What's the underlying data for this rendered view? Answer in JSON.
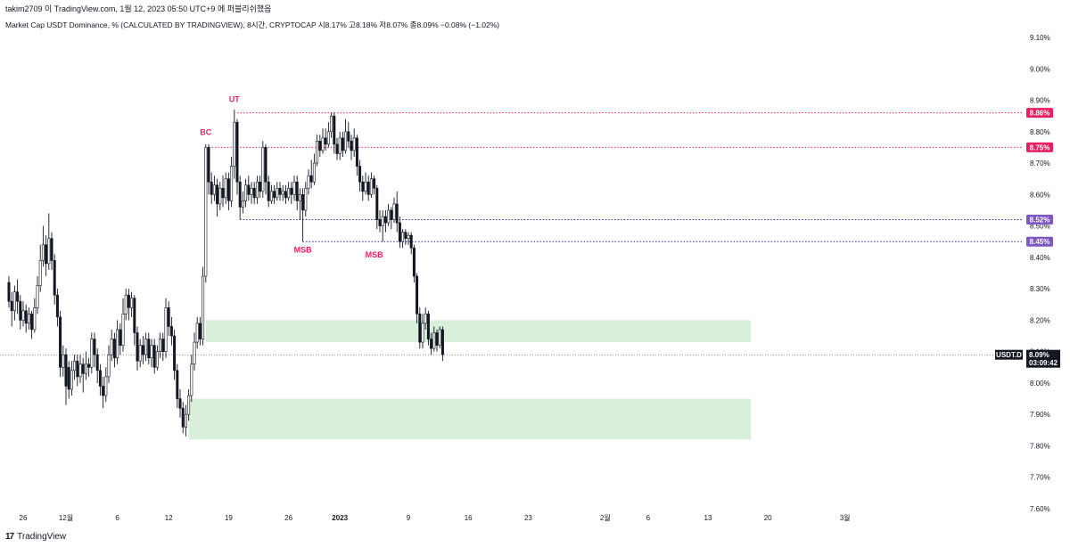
{
  "header": {
    "credit": "takim2709 이 TradingView.com, 1월 12, 2023 05:50 UTC+9 에 퍼블리쉬했음",
    "symbol_line": "Market Cap USDT Dominance, % (CALCULATED BY TRADINGVIEW), 8시간, CRYPTOCAP  시8.17%  고8.18%  저8.07%  종8.09%  −0.08% (−1.02%)"
  },
  "footer": {
    "logo_text": "TradingView",
    "logo_mark": "17"
  },
  "colors": {
    "red_line": "#e91e63",
    "blue_line": "#2a2e8c",
    "red_tag": "#e91e63",
    "purple_tag": "#7e57c2",
    "zone": "#d8f0da",
    "candle": "#131722"
  },
  "price_tag": {
    "symbol": "USDT.D",
    "value": "8.09%",
    "countdown": "03:09:42"
  },
  "chart_data": {
    "type": "candlestick",
    "title": "Market Cap USDT Dominance, % (CALCULATED BY TRADINGVIEW)",
    "timeframe": "8시간",
    "exchange": "CRYPTOCAP",
    "last_bar": {
      "open": 8.17,
      "high": 8.18,
      "low": 8.07,
      "close": 8.09,
      "change": "−0.08%",
      "change_pct": "−1.02%"
    },
    "ylim": [
      7.58,
      9.15
    ],
    "y_ticks": [
      "9.10%",
      "9.00%",
      "8.90%",
      "8.80%",
      "8.70%",
      "8.60%",
      "8.50%",
      "8.40%",
      "8.30%",
      "8.20%",
      "8.10%",
      "8.00%",
      "7.90%",
      "7.80%",
      "7.70%",
      "7.60%"
    ],
    "y_tick_values": [
      9.1,
      9.0,
      8.9,
      8.8,
      8.7,
      8.6,
      8.5,
      8.4,
      8.3,
      8.2,
      8.1,
      8.0,
      7.9,
      7.8,
      7.7,
      7.6
    ],
    "x_ticks": [
      {
        "label": "26",
        "bar": 5
      },
      {
        "label": "12월",
        "bar": 20
      },
      {
        "label": "6",
        "bar": 38
      },
      {
        "label": "12",
        "bar": 56
      },
      {
        "label": "19",
        "bar": 77
      },
      {
        "label": "26",
        "bar": 98
      },
      {
        "label": "2023",
        "bar": 116
      },
      {
        "label": "9",
        "bar": 140
      },
      {
        "label": "16",
        "bar": 161
      },
      {
        "label": "23",
        "bar": 182
      },
      {
        "label": "2월",
        "bar": 209
      },
      {
        "label": "6",
        "bar": 224
      },
      {
        "label": "13",
        "bar": 245
      },
      {
        "label": "20",
        "bar": 266
      },
      {
        "label": "3월",
        "bar": 293
      }
    ],
    "x_bar_range": [
      -2,
      308
    ],
    "levels": [
      {
        "value": 8.86,
        "label": "8.86%",
        "color": "#e91e63",
        "tag": "#e91e63",
        "from_bar": 80
      },
      {
        "value": 8.75,
        "label": "8.75%",
        "color": "#e91e63",
        "tag": "#e91e63",
        "from_bar": 70
      },
      {
        "value": 8.52,
        "label": "8.52%",
        "color": "#2a2e8c",
        "tag": "#7e57c2",
        "from_bar": 81
      },
      {
        "value": 8.45,
        "label": "8.45%",
        "color": "#2a2e8c",
        "tag": "#7e57c2",
        "from_bar": 103
      }
    ],
    "zones": [
      {
        "from_bar": 69,
        "to_bar": 260,
        "top": 8.2,
        "bottom": 8.13
      },
      {
        "from_bar": 63,
        "to_bar": 260,
        "top": 7.95,
        "bottom": 7.82
      }
    ],
    "annotations": [
      {
        "text": "UT",
        "bar": 79,
        "value": 8.895
      },
      {
        "text": "BC",
        "bar": 69,
        "value": 8.79
      },
      {
        "text": "MSB",
        "bar": 103,
        "value": 8.415
      },
      {
        "text": "MSB",
        "bar": 128,
        "value": 8.4
      }
    ],
    "current_price": 8.09,
    "candles": [
      [
        8.32,
        8.26,
        8.34,
        8.24
      ],
      [
        8.26,
        8.23,
        8.29,
        8.18
      ],
      [
        8.23,
        8.29,
        8.31,
        8.2
      ],
      [
        8.29,
        8.26,
        8.33,
        8.22
      ],
      [
        8.26,
        8.2,
        8.28,
        8.17
      ],
      [
        8.2,
        8.23,
        8.26,
        8.18
      ],
      [
        8.23,
        8.19,
        8.25,
        8.16
      ],
      [
        8.19,
        8.22,
        8.24,
        8.17
      ],
      [
        8.22,
        8.17,
        8.23,
        8.14
      ],
      [
        8.17,
        8.24,
        8.27,
        8.16
      ],
      [
        8.24,
        8.31,
        8.34,
        8.22
      ],
      [
        8.31,
        8.39,
        8.44,
        8.29
      ],
      [
        8.39,
        8.44,
        8.5,
        8.37
      ],
      [
        8.44,
        8.38,
        8.47,
        8.34
      ],
      [
        8.38,
        8.46,
        8.54,
        8.36
      ],
      [
        8.46,
        8.39,
        8.48,
        8.36
      ],
      [
        8.39,
        8.28,
        8.41,
        8.25
      ],
      [
        8.28,
        8.21,
        8.3,
        8.18
      ],
      [
        8.21,
        8.05,
        8.23,
        8.02
      ],
      [
        8.05,
        8.09,
        8.12,
        8.02
      ],
      [
        8.09,
        7.99,
        8.11,
        7.93
      ],
      [
        8.05,
        7.98,
        8.07,
        7.95
      ],
      [
        7.98,
        8.04,
        8.07,
        7.96
      ],
      [
        8.04,
        8.07,
        8.09,
        8.01
      ],
      [
        8.07,
        8.02,
        8.09,
        7.99
      ],
      [
        8.02,
        8.06,
        8.09,
        8.0
      ],
      [
        8.06,
        8.03,
        8.08,
        7.97
      ],
      [
        8.03,
        8.06,
        8.1,
        8.01
      ],
      [
        8.06,
        8.05,
        8.08,
        8.02
      ],
      [
        8.05,
        8.14,
        8.16,
        8.03
      ],
      [
        8.14,
        8.09,
        8.16,
        8.05
      ],
      [
        8.09,
        8.04,
        8.11,
        8.0
      ],
      [
        8.04,
        7.99,
        8.06,
        7.96
      ],
      [
        7.99,
        7.96,
        8.02,
        7.92
      ],
      [
        7.96,
        8.02,
        8.05,
        7.94
      ],
      [
        8.02,
        8.09,
        8.12,
        8.0
      ],
      [
        8.09,
        8.14,
        8.17,
        8.07
      ],
      [
        8.14,
        8.08,
        8.16,
        8.05
      ],
      [
        8.08,
        8.17,
        8.2,
        8.06
      ],
      [
        8.17,
        8.12,
        8.19,
        8.09
      ],
      [
        8.12,
        8.22,
        8.27,
        8.1
      ],
      [
        8.22,
        8.28,
        8.3,
        8.2
      ],
      [
        8.28,
        8.24,
        8.3,
        8.2
      ],
      [
        8.24,
        8.27,
        8.29,
        8.21
      ],
      [
        8.27,
        8.16,
        8.28,
        8.12
      ],
      [
        8.16,
        8.07,
        8.18,
        8.04
      ],
      [
        8.07,
        8.12,
        8.14,
        8.05
      ],
      [
        8.12,
        8.09,
        8.15,
        8.06
      ],
      [
        8.09,
        8.14,
        8.16,
        8.07
      ],
      [
        8.14,
        8.08,
        8.16,
        8.06
      ],
      [
        8.08,
        8.12,
        8.14,
        8.05
      ],
      [
        8.12,
        8.05,
        8.14,
        8.03
      ],
      [
        8.05,
        8.1,
        8.12,
        8.04
      ],
      [
        8.1,
        8.14,
        8.16,
        8.08
      ],
      [
        8.14,
        8.1,
        8.16,
        8.07
      ],
      [
        8.1,
        8.24,
        8.27,
        8.08
      ],
      [
        8.24,
        8.18,
        8.26,
        8.15
      ],
      [
        8.18,
        8.15,
        8.21,
        8.12
      ],
      [
        8.15,
        8.04,
        8.17,
        8.01
      ],
      [
        8.04,
        7.95,
        8.06,
        7.92
      ],
      [
        7.95,
        7.92,
        7.98,
        7.89
      ],
      [
        7.92,
        7.86,
        7.94,
        7.84
      ],
      [
        7.86,
        7.9,
        7.93,
        7.83
      ],
      [
        7.9,
        7.96,
        7.98,
        7.88
      ],
      [
        7.96,
        8.06,
        8.09,
        7.94
      ],
      [
        8.06,
        8.13,
        8.16,
        8.04
      ],
      [
        8.13,
        8.19,
        8.21,
        8.11
      ],
      [
        8.19,
        8.14,
        8.21,
        8.12
      ],
      [
        8.14,
        8.34,
        8.37,
        8.12
      ],
      [
        8.34,
        8.75,
        8.76,
        8.32
      ],
      [
        8.75,
        8.64,
        8.76,
        8.6
      ],
      [
        8.64,
        8.6,
        8.67,
        8.57
      ],
      [
        8.6,
        8.63,
        8.66,
        8.58
      ],
      [
        8.63,
        8.57,
        8.65,
        8.53
      ],
      [
        8.57,
        8.62,
        8.64,
        8.55
      ],
      [
        8.62,
        8.59,
        8.66,
        8.56
      ],
      [
        8.59,
        8.65,
        8.67,
        8.57
      ],
      [
        8.65,
        8.58,
        8.67,
        8.55
      ],
      [
        8.58,
        8.69,
        8.72,
        8.56
      ],
      [
        8.69,
        8.83,
        8.87,
        8.65
      ],
      [
        8.83,
        8.64,
        8.84,
        8.6
      ],
      [
        8.64,
        8.56,
        8.66,
        8.52
      ],
      [
        8.56,
        8.58,
        8.61,
        8.54
      ],
      [
        8.58,
        8.63,
        8.65,
        8.56
      ],
      [
        8.63,
        8.6,
        8.66,
        8.58
      ],
      [
        8.6,
        8.62,
        8.64,
        8.57
      ],
      [
        8.62,
        8.59,
        8.64,
        8.57
      ],
      [
        8.59,
        8.64,
        8.66,
        8.57
      ],
      [
        8.64,
        8.61,
        8.66,
        8.59
      ],
      [
        8.61,
        8.75,
        8.77,
        8.59
      ],
      [
        8.75,
        8.64,
        8.76,
        8.6
      ],
      [
        8.64,
        8.58,
        8.66,
        8.56
      ],
      [
        8.58,
        8.61,
        8.63,
        8.57
      ],
      [
        8.61,
        8.59,
        8.63,
        8.57
      ],
      [
        8.59,
        8.62,
        8.64,
        8.58
      ],
      [
        8.62,
        8.6,
        8.64,
        8.58
      ],
      [
        8.6,
        8.61,
        8.63,
        8.58
      ],
      [
        8.61,
        8.59,
        8.63,
        8.57
      ],
      [
        8.59,
        8.62,
        8.64,
        8.58
      ],
      [
        8.62,
        8.6,
        8.64,
        8.57
      ],
      [
        8.6,
        8.64,
        8.66,
        8.58
      ],
      [
        8.64,
        8.58,
        8.66,
        8.55
      ],
      [
        8.58,
        8.6,
        8.62,
        8.52
      ],
      [
        8.6,
        8.55,
        8.62,
        8.45
      ],
      [
        8.55,
        8.62,
        8.64,
        8.53
      ],
      [
        8.62,
        8.66,
        8.68,
        8.6
      ],
      [
        8.66,
        8.64,
        8.71,
        8.62
      ],
      [
        8.64,
        8.7,
        8.73,
        8.63
      ],
      [
        8.7,
        8.77,
        8.79,
        8.69
      ],
      [
        8.77,
        8.74,
        8.79,
        8.72
      ],
      [
        8.74,
        8.78,
        8.81,
        8.73
      ],
      [
        8.78,
        8.76,
        8.81,
        8.74
      ],
      [
        8.76,
        8.8,
        8.83,
        8.75
      ],
      [
        8.8,
        8.85,
        8.86,
        8.78
      ],
      [
        8.85,
        8.76,
        8.86,
        8.73
      ],
      [
        8.76,
        8.73,
        8.78,
        8.71
      ],
      [
        8.73,
        8.78,
        8.8,
        8.71
      ],
      [
        8.78,
        8.74,
        8.8,
        8.72
      ],
      [
        8.74,
        8.8,
        8.84,
        8.73
      ],
      [
        8.8,
        8.77,
        8.83,
        8.75
      ],
      [
        8.77,
        8.74,
        8.79,
        8.71
      ],
      [
        8.74,
        8.78,
        8.81,
        8.72
      ],
      [
        8.78,
        8.69,
        8.79,
        8.66
      ],
      [
        8.69,
        8.64,
        8.71,
        8.61
      ],
      [
        8.64,
        8.61,
        8.66,
        8.58
      ],
      [
        8.61,
        8.64,
        8.67,
        8.6
      ],
      [
        8.64,
        8.6,
        8.66,
        8.58
      ],
      [
        8.6,
        8.65,
        8.67,
        8.59
      ],
      [
        8.65,
        8.62,
        8.66,
        8.6
      ],
      [
        8.62,
        8.52,
        8.63,
        8.49
      ],
      [
        8.52,
        8.5,
        8.55,
        8.48
      ],
      [
        8.5,
        8.53,
        8.55,
        8.45
      ],
      [
        8.53,
        8.51,
        8.55,
        8.48
      ],
      [
        8.51,
        8.55,
        8.57,
        8.5
      ],
      [
        8.55,
        8.52,
        8.56,
        8.49
      ],
      [
        8.52,
        8.57,
        8.59,
        8.51
      ],
      [
        8.57,
        8.51,
        8.61,
        8.48
      ],
      [
        8.51,
        8.45,
        8.53,
        8.43
      ],
      [
        8.45,
        8.48,
        8.49,
        8.43
      ],
      [
        8.48,
        8.46,
        8.49,
        8.44
      ],
      [
        8.46,
        8.47,
        8.48,
        8.44
      ],
      [
        8.47,
        8.43,
        8.48,
        8.41
      ],
      [
        8.43,
        8.34,
        8.44,
        8.32
      ],
      [
        8.34,
        8.22,
        8.35,
        8.19
      ],
      [
        8.22,
        8.13,
        8.24,
        8.11
      ],
      [
        8.13,
        8.19,
        8.22,
        8.11
      ],
      [
        8.19,
        8.22,
        8.24,
        8.17
      ],
      [
        8.22,
        8.14,
        8.23,
        8.12
      ],
      [
        8.14,
        8.11,
        8.16,
        8.09
      ],
      [
        8.11,
        8.16,
        8.18,
        8.1
      ],
      [
        8.16,
        8.12,
        8.17,
        8.1
      ],
      [
        8.12,
        8.17,
        8.18,
        8.11
      ],
      [
        8.17,
        8.09,
        8.18,
        8.07
      ]
    ]
  }
}
